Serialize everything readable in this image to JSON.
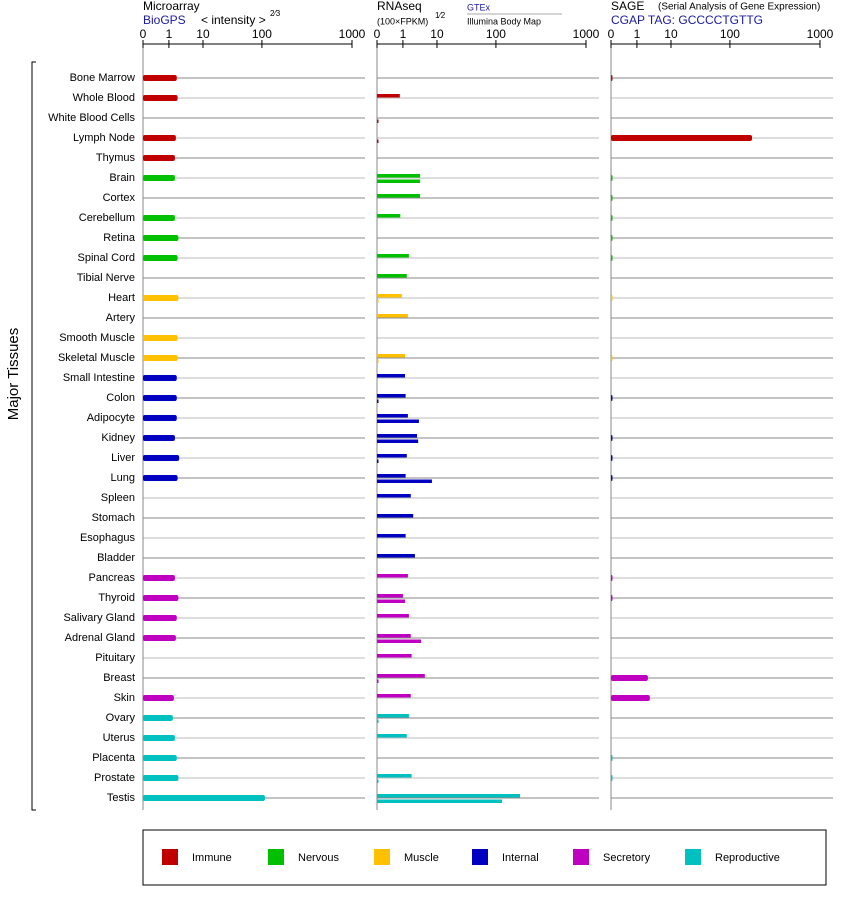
{
  "chart_data": {
    "type": "bar",
    "y_axis_label": "Major Tissues",
    "categories": [
      "Bone Marrow",
      "Whole Blood",
      "White Blood Cells",
      "Lymph Node",
      "Thymus",
      "Brain",
      "Cortex",
      "Cerebellum",
      "Retina",
      "Spinal Cord",
      "Tibial Nerve",
      "Heart",
      "Artery",
      "Smooth Muscle",
      "Skeletal Muscle",
      "Small Intestine",
      "Colon",
      "Adipocyte",
      "Kidney",
      "Liver",
      "Lung",
      "Spleen",
      "Stomach",
      "Esophagus",
      "Bladder",
      "Pancreas",
      "Thyroid",
      "Salivary Gland",
      "Adrenal Gland",
      "Pituitary",
      "Breast",
      "Skin",
      "Ovary",
      "Uterus",
      "Placenta",
      "Prostate",
      "Testis"
    ],
    "groups": [
      "Immune",
      "Immune",
      "Immune",
      "Immune",
      "Immune",
      "Nervous",
      "Nervous",
      "Nervous",
      "Nervous",
      "Nervous",
      "Nervous",
      "Muscle",
      "Muscle",
      "Muscle",
      "Muscle",
      "Internal",
      "Internal",
      "Internal",
      "Internal",
      "Internal",
      "Internal",
      "Internal",
      "Internal",
      "Internal",
      "Internal",
      "Secretory",
      "Secretory",
      "Secretory",
      "Secretory",
      "Secretory",
      "Secretory",
      "Secretory",
      "Reproductive",
      "Reproductive",
      "Reproductive",
      "Reproductive",
      "Reproductive"
    ],
    "legend": [
      {
        "name": "Immune",
        "color": "#c00000"
      },
      {
        "name": "Nervous",
        "color": "#00c000"
      },
      {
        "name": "Muscle",
        "color": "#ffc000"
      },
      {
        "name": "Internal",
        "color": "#0000c0"
      },
      {
        "name": "Secretory",
        "color": "#c000c0"
      },
      {
        "name": "Reproductive",
        "color": "#00c0c0"
      }
    ],
    "panels": [
      {
        "type": "bar",
        "title": "Microarray",
        "source": "BioGPS",
        "axis_label": "< intensity >",
        "axis_power": "2⁄3",
        "xlim": [
          0,
          1000
        ],
        "xticks": [
          0,
          1,
          10,
          100,
          1000
        ],
        "series": [
          {
            "name": "BioGPS",
            "values": [
              1.7,
              1.8,
              null,
              1.6,
              1.5,
              1.5,
              null,
              1.5,
              1.9,
              1.8,
              null,
              1.9,
              null,
              1.8,
              1.8,
              1.7,
              1.7,
              1.7,
              1.5,
              2.0,
              1.8,
              null,
              null,
              null,
              null,
              1.5,
              1.9,
              1.7,
              1.6,
              null,
              null,
              1.4,
              1.3,
              1.5,
              1.7,
              1.9,
              108
            ]
          }
        ]
      },
      {
        "type": "bar",
        "title": "RNAseq",
        "axis_label": "(100×FPKM)",
        "axis_power": "1⁄2",
        "xlim": [
          0,
          1000
        ],
        "xticks": [
          0,
          1,
          10,
          100,
          1000
        ],
        "series": [
          {
            "name": "GTEx",
            "values": [
              null,
              0.88,
              null,
              null,
              null,
              3.2,
              3.2,
              0.9,
              null,
              1.5,
              1.3,
              0.96,
              1.4,
              null,
              1.15,
              1.15,
              1.2,
              1.4,
              2.6,
              1.3,
              1.2,
              1.7,
              2.0,
              1.2,
              2.25,
              1.4,
              1.0,
              1.5,
              1.7,
              1.8,
              4.4,
              1.7,
              1.5,
              1.3,
              null,
              1.8,
              185
            ]
          },
          {
            "name": "Illumina Body Map",
            "values": [
              null,
              null,
              0.05,
              0.05,
              null,
              3.2,
              null,
              null,
              null,
              null,
              null,
              0.05,
              null,
              null,
              0.05,
              null,
              0.05,
              2.95,
              2.8,
              0.05,
              7.1,
              null,
              null,
              null,
              null,
              null,
              1.15,
              null,
              3.4,
              null,
              0.05,
              null,
              0.05,
              null,
              null,
              0.05,
              117
            ]
          }
        ]
      },
      {
        "type": "bar",
        "title": "SAGE",
        "subtitle": "(Serial Analysis of Gene Expression)",
        "source": "CGAP TAG: GCCCCTGTTG",
        "xlim": [
          0,
          1000
        ],
        "xticks": [
          0,
          1,
          10,
          100,
          1000
        ],
        "series": [
          {
            "name": "CGAP TAG: GCCCCTGTTG",
            "values": [
              0.05,
              null,
              null,
              176,
              null,
              0.05,
              0.05,
              0.05,
              0.05,
              0.05,
              null,
              0.05,
              null,
              null,
              0.05,
              null,
              0.05,
              null,
              0.05,
              0.05,
              0.05,
              null,
              null,
              null,
              null,
              0.05,
              0.05,
              null,
              null,
              null,
              2.1,
              2.4,
              null,
              null,
              0.05,
              0.05,
              null
            ]
          }
        ]
      }
    ]
  }
}
